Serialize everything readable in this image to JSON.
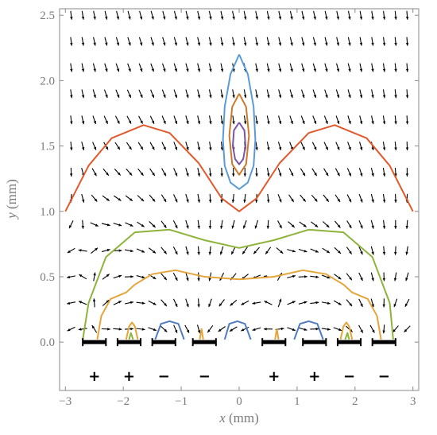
{
  "chart_data": {
    "type": "vector-field-with-contours",
    "x_axis": {
      "var": "x",
      "unit": " (mm)",
      "range": [
        -3.1,
        3.1
      ],
      "ticks": [
        "−3",
        "−2",
        "−1",
        "0",
        "1",
        "2",
        "3"
      ]
    },
    "y_axis": {
      "var": "y",
      "unit": " (mm)",
      "range": [
        -0.37,
        2.55
      ],
      "ticks": [
        "0.0",
        "0.5",
        "1.0",
        "1.5",
        "2.0",
        "2.5"
      ]
    },
    "frame": true,
    "grid": false,
    "electrodes": {
      "color": "#000000",
      "segments": [
        {
          "x": -2.5,
          "y": 0.0,
          "sign": "+"
        },
        {
          "x": -1.9,
          "y": 0.0,
          "sign": "+"
        },
        {
          "x": -1.3,
          "y": 0.0,
          "sign": "−"
        },
        {
          "x": -0.6,
          "y": 0.0,
          "sign": "−"
        },
        {
          "x": 0.6,
          "y": 0.0,
          "sign": "+"
        },
        {
          "x": 1.3,
          "y": 0.0,
          "sign": "+"
        },
        {
          "x": 1.9,
          "y": 0.0,
          "sign": "−"
        },
        {
          "x": 2.5,
          "y": 0.0,
          "sign": "−"
        }
      ]
    },
    "contours": [
      {
        "color": "#e05a2c",
        "points": [
          [
            -3.0,
            1.0
          ],
          [
            -2.6,
            1.35
          ],
          [
            -2.2,
            1.56
          ],
          [
            -1.65,
            1.66
          ],
          [
            -1.2,
            1.6
          ],
          [
            -0.7,
            1.37
          ],
          [
            -0.3,
            1.1
          ],
          [
            0.0,
            1.0
          ],
          [
            0.3,
            1.1
          ],
          [
            0.7,
            1.37
          ],
          [
            1.2,
            1.6
          ],
          [
            1.65,
            1.66
          ],
          [
            2.2,
            1.56
          ],
          [
            2.6,
            1.35
          ],
          [
            3.0,
            1.0
          ]
        ]
      },
      {
        "color": "#8db33a",
        "points": [
          [
            -2.7,
            0.02
          ],
          [
            -2.6,
            0.3
          ],
          [
            -2.3,
            0.65
          ],
          [
            -1.8,
            0.84
          ],
          [
            -1.2,
            0.86
          ],
          [
            -0.6,
            0.78
          ],
          [
            0.0,
            0.72
          ],
          [
            0.6,
            0.78
          ],
          [
            1.2,
            0.86
          ],
          [
            1.8,
            0.84
          ],
          [
            2.3,
            0.65
          ],
          [
            2.6,
            0.3
          ],
          [
            2.66,
            0.02
          ]
        ]
      },
      {
        "color": "#e5a53b",
        "points": [
          [
            -2.45,
            0.02
          ],
          [
            -2.38,
            0.2
          ],
          [
            -2.22,
            0.33
          ],
          [
            -1.95,
            0.38
          ],
          [
            -1.8,
            0.44
          ],
          [
            -1.5,
            0.52
          ],
          [
            -1.1,
            0.55
          ],
          [
            -0.6,
            0.5
          ],
          [
            0.0,
            0.48
          ],
          [
            0.6,
            0.5
          ],
          [
            1.1,
            0.55
          ],
          [
            1.5,
            0.52
          ],
          [
            1.8,
            0.44
          ],
          [
            1.95,
            0.38
          ],
          [
            2.22,
            0.33
          ],
          [
            2.38,
            0.2
          ],
          [
            2.45,
            0.02
          ]
        ]
      },
      {
        "color": "#5b9bd5",
        "points": [
          [
            0.0,
            2.2
          ],
          [
            0.15,
            2.05
          ],
          [
            0.25,
            1.8
          ],
          [
            0.28,
            1.55
          ],
          [
            0.25,
            1.35
          ],
          [
            0.15,
            1.22
          ],
          [
            0.0,
            1.17
          ],
          [
            -0.15,
            1.22
          ],
          [
            -0.25,
            1.35
          ],
          [
            -0.28,
            1.55
          ],
          [
            -0.25,
            1.8
          ],
          [
            -0.15,
            2.05
          ],
          [
            0.0,
            2.2
          ]
        ]
      },
      {
        "color": "#cc7a2a",
        "points": [
          [
            0.0,
            1.9
          ],
          [
            0.12,
            1.8
          ],
          [
            0.17,
            1.58
          ],
          [
            0.12,
            1.36
          ],
          [
            0.0,
            1.28
          ],
          [
            -0.12,
            1.36
          ],
          [
            -0.17,
            1.58
          ],
          [
            -0.12,
            1.8
          ],
          [
            0.0,
            1.9
          ]
        ]
      },
      {
        "color": "#7a54a8",
        "points": [
          [
            0.0,
            1.68
          ],
          [
            0.09,
            1.62
          ],
          [
            0.11,
            1.5
          ],
          [
            0.07,
            1.4
          ],
          [
            0.0,
            1.36
          ],
          [
            -0.07,
            1.4
          ],
          [
            -0.11,
            1.5
          ],
          [
            -0.09,
            1.62
          ],
          [
            0.0,
            1.68
          ]
        ]
      },
      {
        "color": "#4f7cc0",
        "points": [
          [
            -1.45,
            0.02
          ],
          [
            -1.35,
            0.14
          ],
          [
            -1.2,
            0.16
          ],
          [
            -1.05,
            0.14
          ],
          [
            -0.95,
            0.02
          ]
        ]
      },
      {
        "color": "#4f7cc0",
        "points": [
          [
            -0.25,
            0.02
          ],
          [
            -0.17,
            0.14
          ],
          [
            -0.03,
            0.16
          ],
          [
            0.1,
            0.14
          ],
          [
            0.2,
            0.02
          ]
        ]
      },
      {
        "color": "#4f7cc0",
        "points": [
          [
            0.95,
            0.02
          ],
          [
            1.05,
            0.14
          ],
          [
            1.2,
            0.16
          ],
          [
            1.35,
            0.14
          ],
          [
            1.45,
            0.02
          ]
        ]
      },
      {
        "color": "#e5a53b",
        "points": [
          [
            -1.95,
            0.02
          ],
          [
            -1.9,
            0.12
          ],
          [
            -1.85,
            0.15
          ],
          [
            -1.8,
            0.12
          ],
          [
            -1.75,
            0.02
          ]
        ]
      },
      {
        "color": "#e5a53b",
        "points": [
          [
            -0.68,
            0.02
          ],
          [
            -0.65,
            0.1
          ],
          [
            -0.62,
            0.02
          ]
        ]
      },
      {
        "color": "#e5a53b",
        "points": [
          [
            0.62,
            0.02
          ],
          [
            0.65,
            0.1
          ],
          [
            0.68,
            0.02
          ]
        ]
      },
      {
        "color": "#e5a53b",
        "points": [
          [
            1.75,
            0.02
          ],
          [
            1.8,
            0.12
          ],
          [
            1.85,
            0.15
          ],
          [
            1.9,
            0.12
          ],
          [
            1.95,
            0.02
          ]
        ]
      },
      {
        "color": "#8db33a",
        "points": [
          [
            -1.9,
            0.02
          ],
          [
            -1.87,
            0.07
          ],
          [
            -1.83,
            0.02
          ]
        ]
      },
      {
        "color": "#8db33a",
        "points": [
          [
            1.83,
            0.02
          ],
          [
            1.87,
            0.07
          ],
          [
            1.9,
            0.02
          ]
        ]
      }
    ],
    "arrow_color": "#000000"
  }
}
